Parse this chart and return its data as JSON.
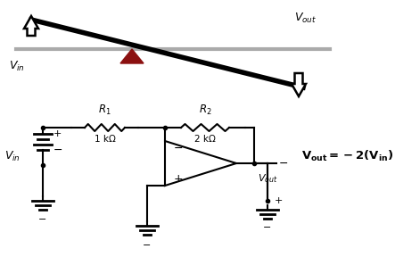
{
  "bg_color": "#ffffff",
  "line_color": "#000000",
  "triangle_color": "#8B1010",
  "fig_width": 4.43,
  "fig_height": 2.88,
  "dpi": 100
}
